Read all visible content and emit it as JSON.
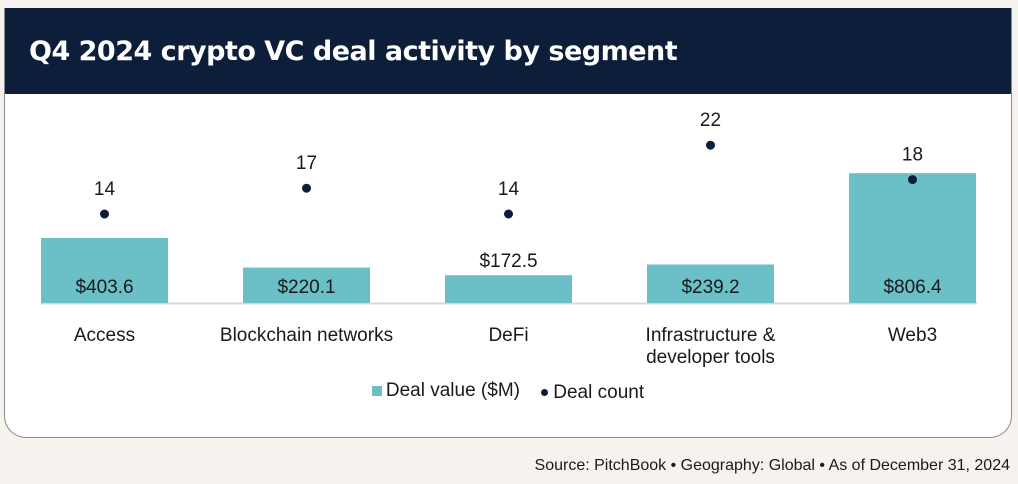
{
  "title": "Q4 2024 crypto VC deal activity by segment",
  "source": "Source: PitchBook  •  Geography: Global  •  As of December 31, 2024",
  "colors": {
    "header": "#0d1e3a",
    "bar": "#6bbfc7",
    "dot": "#0d1e3a"
  },
  "legend": {
    "bar_label": "Deal value ($M)",
    "dot_label": "Deal count"
  },
  "chart_data": {
    "type": "bar",
    "title": "Q4 2024 crypto VC deal activity by segment",
    "xlabel": "",
    "ylabel": "",
    "categories": [
      "Access",
      "Blockchain networks",
      "DeFi",
      "Infrastructure & developer tools",
      "Web3"
    ],
    "category_lines": [
      [
        "Access"
      ],
      [
        "Blockchain networks"
      ],
      [
        "DeFi"
      ],
      [
        "Infrastructure &",
        "developer tools"
      ],
      [
        "Web3"
      ]
    ],
    "series": [
      {
        "name": "Deal value ($M)",
        "type": "bar",
        "values": [
          403.6,
          220.1,
          172.5,
          239.2,
          806.4
        ],
        "labels": [
          "$403.6",
          "$220.1",
          "$172.5",
          "$239.2",
          "$806.4"
        ]
      },
      {
        "name": "Deal count",
        "type": "scatter",
        "values": [
          14,
          17,
          14,
          22,
          18
        ],
        "labels": [
          "14",
          "17",
          "14",
          "22",
          "18"
        ]
      }
    ],
    "bar_ylim": [
      0,
      1000
    ],
    "count_ylim": [
      0,
      25
    ],
    "grid": false,
    "legend_position": "bottom-center"
  }
}
